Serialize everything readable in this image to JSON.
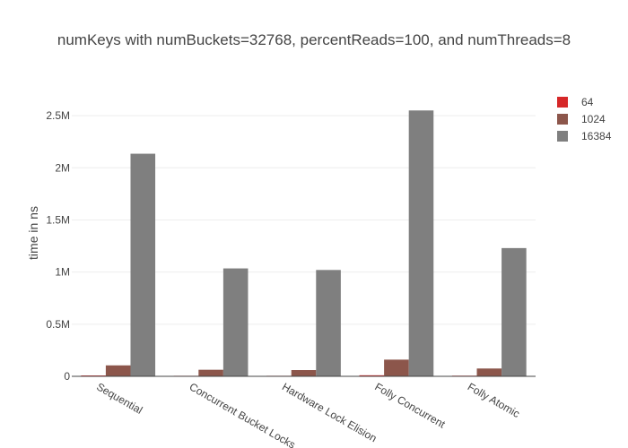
{
  "chart_data": {
    "type": "bar",
    "title": "numKeys with numBuckets=32768, percentReads=100, and numThreads=8",
    "xlabel": "",
    "ylabel": "time in ns",
    "categories": [
      "Sequential",
      "Concurrent Bucket Locks",
      "Hardware Lock Elision",
      "Folly Concurrent",
      "Folly Atomic"
    ],
    "series": [
      {
        "name": "64",
        "color": "#d62728",
        "values": [
          8000,
          5000,
          5000,
          10000,
          6000
        ]
      },
      {
        "name": "1024",
        "color": "#8c564b",
        "values": [
          105000,
          63000,
          60000,
          160000,
          75000
        ]
      },
      {
        "name": "16384",
        "color": "#7f7f7f",
        "values": [
          2135000,
          1035000,
          1020000,
          2550000,
          1230000
        ]
      }
    ],
    "ylim": [
      0,
      2750000
    ],
    "yticks": [
      {
        "value": 0,
        "label": "0"
      },
      {
        "value": 500000,
        "label": "0.5M"
      },
      {
        "value": 1000000,
        "label": "1M"
      },
      {
        "value": 1500000,
        "label": "1.5M"
      },
      {
        "value": 2000000,
        "label": "2M"
      },
      {
        "value": 2500000,
        "label": "2.5M"
      }
    ],
    "grid": true,
    "legend_position": "top-right"
  }
}
